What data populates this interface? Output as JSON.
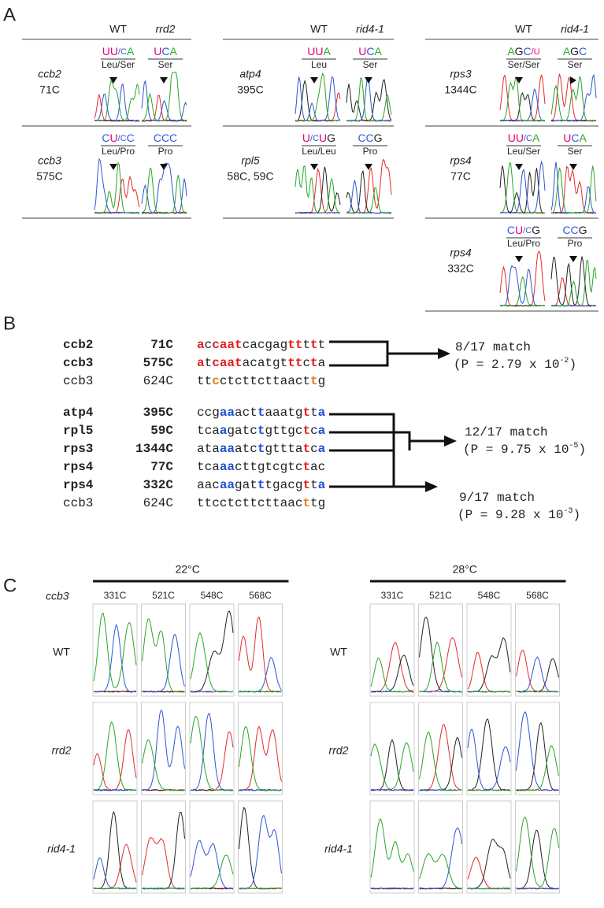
{
  "nucleotide_colors": {
    "U": "#e4007c",
    "C": "#2f5ad8",
    "A": "#26b026",
    "G": "#222222"
  },
  "panel_a": {
    "label": "A",
    "groups": [
      {
        "headers": [
          "WT",
          "rrd2"
        ],
        "rows": [
          {
            "gene": "ccb2",
            "site": "71C",
            "codons": [
              [
                "UU",
                "/C",
                "A"
              ],
              [
                "U",
                "C",
                "A"
              ]
            ],
            "amino_acids": [
              "Leu/Ser",
              "Ser"
            ]
          },
          {
            "gene": "ccb3",
            "site": "575C",
            "codons": [
              [
                "C",
                "U",
                "/C",
                "C"
              ],
              [
                "CCC"
              ]
            ],
            "amino_acids": [
              "Leu/Pro",
              "Pro"
            ]
          }
        ]
      },
      {
        "headers": [
          "WT",
          "rid4-1"
        ],
        "rows": [
          {
            "gene": "atp4",
            "site": "395C",
            "codons": [
              [
                "UU",
                "A"
              ],
              [
                "U",
                "C",
                "A"
              ]
            ],
            "amino_acids": [
              "Leu",
              "Ser"
            ]
          },
          {
            "gene": "rpl5",
            "site": "58C, 59C",
            "codons": [
              [
                "U",
                "/C",
                "U",
                "G"
              ],
              [
                "CC",
                "G"
              ]
            ],
            "amino_acids": [
              "Leu/Leu",
              "Pro"
            ]
          }
        ]
      },
      {
        "headers": [
          "WT",
          "rid4-1"
        ],
        "rows": [
          {
            "gene": "rps3",
            "site": "1344C",
            "codons": [
              [
                "A",
                "G",
                "C",
                "/U"
              ],
              [
                "A",
                "G",
                "C"
              ]
            ],
            "amino_acids": [
              "Ser/Ser",
              "Ser"
            ]
          },
          {
            "gene": "rps4",
            "site": "77C",
            "codons": [
              [
                "UU",
                "/C",
                "A"
              ],
              [
                "U",
                "C",
                "A"
              ]
            ],
            "amino_acids": [
              "Leu/Ser",
              "Ser"
            ]
          },
          {
            "gene": "rps4",
            "site": "332C",
            "codons": [
              [
                "C",
                "U",
                "/C",
                "G"
              ],
              [
                "CC",
                "G"
              ]
            ],
            "amino_acids": [
              "Leu/Pro",
              "Pro"
            ]
          }
        ]
      }
    ]
  },
  "panel_b": {
    "label": "B",
    "rows": [
      {
        "gene": "ccb2",
        "site": "71C",
        "segments": [
          {
            "text": "a",
            "color": "#e02020"
          },
          {
            "text": "c"
          },
          {
            "text": "caat",
            "color": "#e02020"
          },
          {
            "text": "cacgag"
          },
          {
            "text": "tt",
            "color": "#e02020"
          },
          {
            "text": "t"
          },
          {
            "text": "t",
            "color": "#e02020"
          },
          {
            "text": "t"
          }
        ]
      },
      {
        "gene": "ccb3",
        "site": "575C",
        "segments": [
          {
            "text": "a",
            "color": "#e02020"
          },
          {
            "text": "t"
          },
          {
            "text": "caat",
            "color": "#e02020"
          },
          {
            "text": "acatgt"
          },
          {
            "text": "tt",
            "color": "#e02020"
          },
          {
            "text": "c"
          },
          {
            "text": "t",
            "color": "#e02020"
          },
          {
            "text": "a"
          }
        ]
      },
      {
        "gene": "ccb3",
        "site": "624C",
        "color": "#9a9a9a",
        "segments": [
          {
            "text": "tt"
          },
          {
            "text": "c",
            "color": "#e87d1e"
          },
          {
            "text": "ctcttcttaact"
          },
          {
            "text": "t",
            "color": "#e87d1e"
          },
          {
            "text": "g"
          }
        ]
      },
      {
        "gene": "atp4",
        "site": "395C",
        "segments": [
          {
            "text": "ccg"
          },
          {
            "text": "aa",
            "color": "#1f4fd8"
          },
          {
            "text": "act"
          },
          {
            "text": "t",
            "color": "#1f4fd8"
          },
          {
            "text": "aaatg"
          },
          {
            "text": "t",
            "color": "#e02020"
          },
          {
            "text": "t"
          },
          {
            "text": "a",
            "color": "#1f4fd8"
          }
        ]
      },
      {
        "gene": "rpl5",
        "site": "59C",
        "segments": [
          {
            "text": "tca"
          },
          {
            "text": "a",
            "color": "#1f4fd8"
          },
          {
            "text": "gatc"
          },
          {
            "text": "t",
            "color": "#1f4fd8"
          },
          {
            "text": "gttgc"
          },
          {
            "text": "t",
            "color": "#e02020"
          },
          {
            "text": "c"
          },
          {
            "text": "a",
            "color": "#1f4fd8"
          }
        ]
      },
      {
        "gene": "rps3",
        "site": "1344C",
        "segments": [
          {
            "text": "ata"
          },
          {
            "text": "aa",
            "color": "#1f4fd8"
          },
          {
            "text": "atc"
          },
          {
            "text": "t",
            "color": "#1f4fd8"
          },
          {
            "text": "gttta"
          },
          {
            "text": "t",
            "color": "#e02020"
          },
          {
            "text": "c"
          },
          {
            "text": "a",
            "color": "#1f4fd8"
          }
        ]
      },
      {
        "gene": "rps4",
        "site": "77C",
        "segments": [
          {
            "text": "tca"
          },
          {
            "text": "aa",
            "color": "#1f4fd8"
          },
          {
            "text": "cttgtcgtc"
          },
          {
            "text": "t",
            "color": "#e02020"
          },
          {
            "text": "ac"
          }
        ]
      },
      {
        "gene": "rps4",
        "site": "332C",
        "segments": [
          {
            "text": "aac"
          },
          {
            "text": "aa",
            "color": "#1f4fd8"
          },
          {
            "text": "gat"
          },
          {
            "text": "t",
            "color": "#1f4fd8"
          },
          {
            "text": "tgacg"
          },
          {
            "text": "t",
            "color": "#e02020"
          },
          {
            "text": "t"
          },
          {
            "text": "a",
            "color": "#1f4fd8"
          }
        ]
      },
      {
        "gene": "ccb3",
        "site": "624C",
        "color": "#9a9a9a",
        "segments": [
          {
            "text": "ttcctcttcttaac"
          },
          {
            "text": "t",
            "color": "#e87d1e"
          },
          {
            "text": "tg"
          }
        ]
      }
    ],
    "annotations": [
      {
        "match": "8/17 match",
        "p_value": "(P = 2.79 x 10",
        "exponent": "-2",
        "close": ")"
      },
      {
        "match": "12/17 match",
        "p_value": "(P = 9.75 x 10",
        "exponent": "-5",
        "close": ")"
      },
      {
        "match": "9/17 match",
        "p_value": "(P = 9.28 x 10",
        "exponent": "-3",
        "close": ")"
      }
    ]
  },
  "panel_c": {
    "label": "C",
    "gene": "ccb3",
    "blocks": [
      {
        "temperature": "22°C",
        "sites": [
          "331C",
          "521C",
          "548C",
          "568C"
        ],
        "rows": [
          "WT",
          "rrd2",
          "rid4-1"
        ]
      },
      {
        "temperature": "28°C",
        "sites": [
          "331C",
          "521C",
          "548C",
          "568C"
        ],
        "rows": [
          "WT",
          "rrd2",
          "rid4-1"
        ]
      }
    ]
  }
}
